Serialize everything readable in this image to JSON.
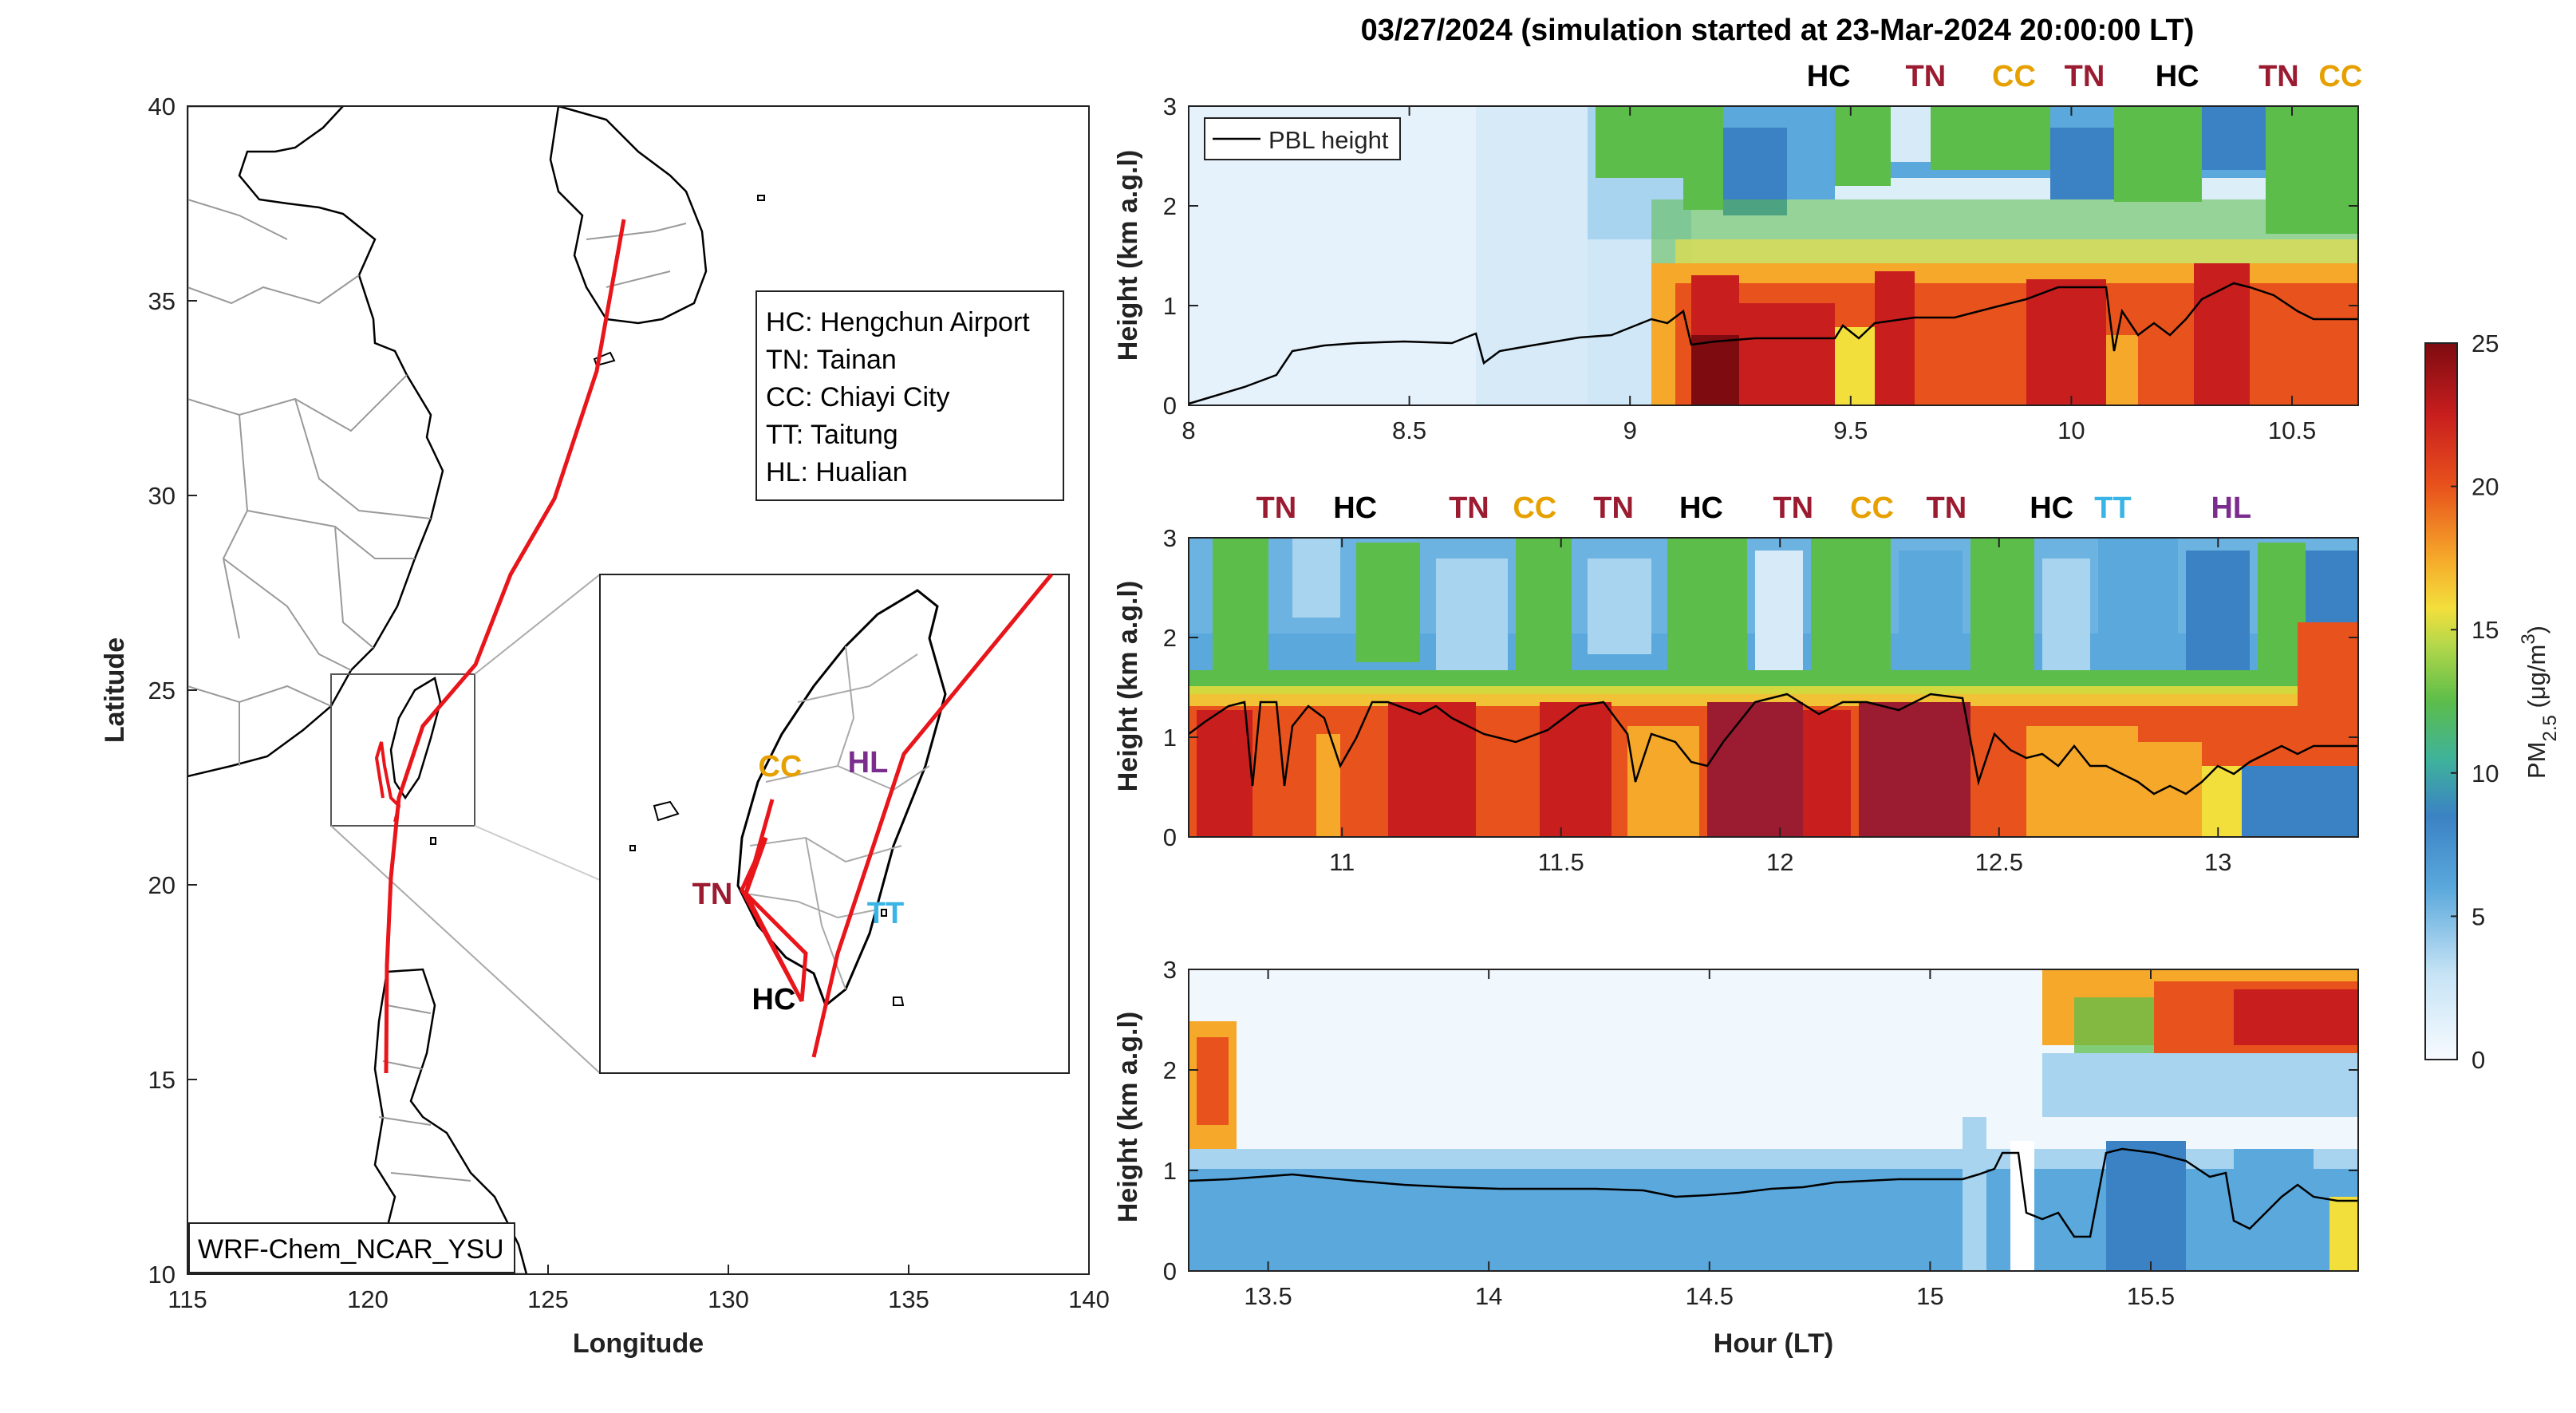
{
  "title": "03/27/2024 (simulation started at 23-Mar-2024 20:00:00 LT)",
  "colors": {
    "track": "#e8151b",
    "HC": "#000000",
    "TN": "#9b1b30",
    "CC": "#e6a000",
    "TT": "#39b4e6",
    "HL": "#7b2d8e",
    "pbl_line": "#000000",
    "map_land_border": "#9a9a9a",
    "coastline": "#000000"
  },
  "map": {
    "xlabel": "Longitude",
    "ylabel": "Latitude",
    "xlim": [
      115,
      140
    ],
    "ylim": [
      10,
      40
    ],
    "xticks": [
      "115",
      "120",
      "125",
      "130",
      "135",
      "140"
    ],
    "yticks": [
      "10",
      "15",
      "20",
      "25",
      "30",
      "35",
      "40"
    ],
    "model_label": "WRF-Chem_NCAR_YSU",
    "legend": [
      "HC: Hengchun Airport",
      "TN: Tainan",
      "CC: Chiayi City",
      "TT: Taitung",
      "HL: Hualian"
    ],
    "inset_labels": {
      "CC": "CC",
      "HL": "HL",
      "TN": "TN",
      "TT": "TT",
      "HC": "HC"
    }
  },
  "colorbar": {
    "label": "PM2.5 (μg/m3)",
    "ticks": [
      "0",
      "5",
      "10",
      "15",
      "20",
      "25"
    ],
    "range": [
      0,
      25
    ]
  },
  "panels": [
    {
      "xlim": [
        8.0,
        10.65
      ],
      "xticks": [
        "8",
        "8.5",
        "9",
        "9.5",
        "10",
        "10.5"
      ],
      "ylabel": "Height (km a.g.l)",
      "yticks": [
        "0",
        "1",
        "2",
        "3"
      ],
      "legend": "PBL height",
      "sites": [
        {
          "label": "HC",
          "x": 9.45
        },
        {
          "label": "TN",
          "x": 9.67
        },
        {
          "label": "CC",
          "x": 9.87
        },
        {
          "label": "TN",
          "x": 10.03
        },
        {
          "label": "HC",
          "x": 10.24
        },
        {
          "label": "TN",
          "x": 10.47
        },
        {
          "label": "CC",
          "x": 10.61
        }
      ]
    },
    {
      "xlim": [
        10.65,
        13.32
      ],
      "xticks": [
        "11",
        "11.5",
        "12",
        "12.5",
        "13"
      ],
      "ylabel": "Height (km a.g.l)",
      "yticks": [
        "0",
        "1",
        "2",
        "3"
      ],
      "sites": [
        {
          "label": "TN",
          "x": 10.85
        },
        {
          "label": "HC",
          "x": 11.03
        },
        {
          "label": "TN",
          "x": 11.29
        },
        {
          "label": "CC",
          "x": 11.44
        },
        {
          "label": "TN",
          "x": 11.62
        },
        {
          "label": "HC",
          "x": 11.82
        },
        {
          "label": "TN",
          "x": 12.03
        },
        {
          "label": "CC",
          "x": 12.21
        },
        {
          "label": "TN",
          "x": 12.38
        },
        {
          "label": "HC",
          "x": 12.62
        },
        {
          "label": "TT",
          "x": 12.76
        },
        {
          "label": "HL",
          "x": 13.03
        }
      ]
    },
    {
      "xlim": [
        13.32,
        15.97
      ],
      "xticks": [
        "13.5",
        "14",
        "14.5",
        "15",
        "15.5"
      ],
      "ylabel": "Height (km a.g.l)",
      "yticks": [
        "0",
        "1",
        "2",
        "3"
      ],
      "xlabel": "Hour (LT)",
      "sites": []
    }
  ]
}
